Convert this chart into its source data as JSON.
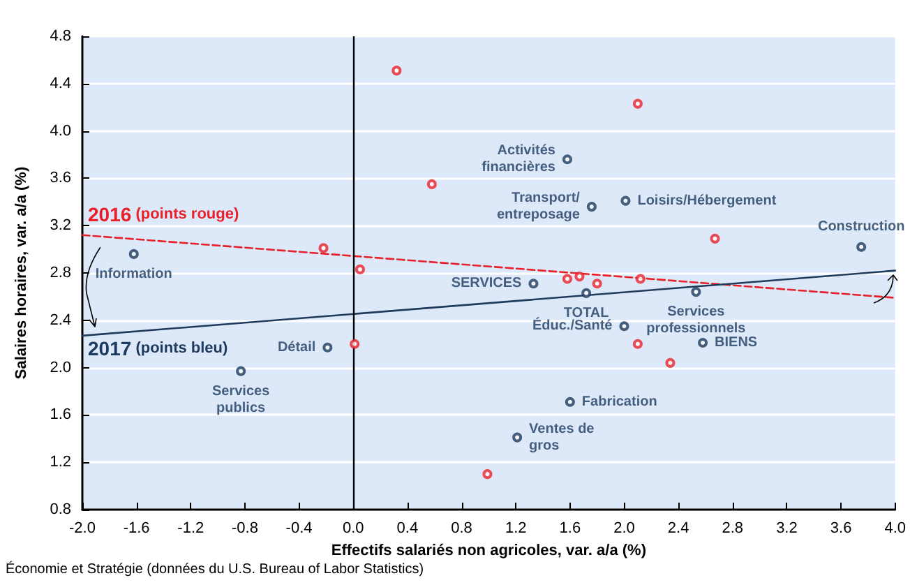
{
  "chart_data": {
    "type": "scatter",
    "xlabel": "Effectifs salariés non agricoles, var. a/a (%)",
    "ylabel": "Salaires horaires, var. a/a (%)",
    "xlim": [
      -2,
      4
    ],
    "xticks": [
      {
        "value": -2,
        "label": "-2.0"
      },
      -1.6,
      -1.2,
      -0.8,
      -0.4,
      {
        "value": 0,
        "label": "0.0"
      },
      0.4,
      0.8,
      1.2,
      1.6,
      {
        "value": 2,
        "label": "2.0"
      },
      2.4,
      2.8,
      3.2,
      3.6,
      {
        "value": 4,
        "label": "4.0"
      }
    ],
    "ylim": [
      0.8,
      4.8
    ],
    "yticks": [
      0.8,
      1.2,
      1.6,
      {
        "value": 2,
        "label": "2.0"
      },
      2.4,
      2.8,
      3.2,
      3.6,
      {
        "value": 4,
        "label": "4.0"
      },
      4.4,
      4.8
    ],
    "grid": "y",
    "legend": false,
    "marker": "circle",
    "series": [
      {
        "name": "2016 (points rouge)",
        "color": "#e8202a",
        "x": [
          0.32,
          2.1,
          0.58,
          -0.22,
          0.05,
          2.67,
          1.58,
          1.67,
          1.8,
          2.12,
          2.1,
          2.34,
          0.99,
          0.01
        ],
        "values": [
          4.51,
          4.23,
          3.55,
          3.01,
          2.83,
          3.09,
          2.75,
          2.77,
          2.71,
          2.75,
          2.2,
          2.04,
          1.1,
          2.2
        ]
      },
      {
        "name": "2017 (points bleu)",
        "color": "#1c3a5e",
        "x": [
          -1.62,
          1.58,
          1.76,
          2.01,
          3.75,
          1.33,
          1.72,
          2.53,
          2.0,
          2.58,
          1.6,
          1.21,
          -0.19,
          -0.83
        ],
        "values": [
          2.96,
          3.76,
          3.36,
          3.41,
          3.02,
          2.71,
          2.63,
          2.64,
          2.35,
          2.21,
          1.71,
          1.41,
          2.17,
          1.97
        ],
        "value_labels": [
          "Information",
          "Activités\nfinancières",
          "Transport/\nentreposage",
          "Loisirs/Hébergement",
          "Construction",
          "SERVICES",
          "TOTAL",
          "Services\nprofessionnels",
          "Éduc./Santé",
          "BIENS",
          "Fabrication",
          "Ventes de\ngros",
          "Détail",
          "Services\npublics"
        ]
      },
      {
        "type": "line",
        "color": "#e8202a",
        "line_style": "dashed",
        "marker": "none",
        "x": [
          -2,
          4
        ],
        "values": [
          3.12,
          2.59
        ]
      },
      {
        "type": "line",
        "color": "#1f3b5b",
        "line_style": "solid",
        "marker": "none",
        "x": [
          -2,
          4
        ],
        "values": [
          2.27,
          2.82
        ]
      }
    ],
    "ref_lines": [
      {
        "axis": "x",
        "value": 0,
        "color": "#000000",
        "line_style": "solid"
      }
    ],
    "annotations": [
      "Économie et Stratégie (données du U.S. Bureau of Labor Statistics)"
    ]
  }
}
